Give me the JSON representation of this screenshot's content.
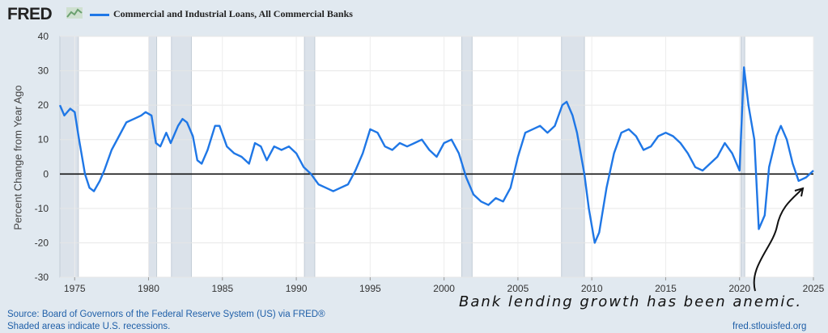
{
  "header": {
    "logo_text": "FRED",
    "logo_icon": "chart-line-icon",
    "series_title": "Commercial and Industrial Loans, All Commercial Banks"
  },
  "chart_data": {
    "type": "line",
    "title": "Commercial and Industrial Loans, All Commercial Banks",
    "ylabel": "Percent Change from Year Ago",
    "xlabel": "",
    "ylim": [
      -30,
      40
    ],
    "xlim": [
      1974,
      2025
    ],
    "y_ticks": [
      -30,
      -20,
      -10,
      0,
      10,
      20,
      30,
      40
    ],
    "x_ticks": [
      1975,
      1980,
      1985,
      1990,
      1995,
      2000,
      2005,
      2010,
      2015,
      2020,
      2025
    ],
    "grid": true,
    "zero_line": true,
    "series": [
      {
        "name": "Commercial and Industrial Loans, All Commercial Banks",
        "color": "#1f77e6",
        "points": [
          [
            1974.0,
            20
          ],
          [
            1974.3,
            17
          ],
          [
            1974.7,
            19
          ],
          [
            1975.0,
            18
          ],
          [
            1975.3,
            10
          ],
          [
            1975.7,
            0
          ],
          [
            1976.0,
            -4
          ],
          [
            1976.3,
            -5
          ],
          [
            1976.7,
            -2
          ],
          [
            1977.0,
            1
          ],
          [
            1977.5,
            7
          ],
          [
            1978.0,
            11
          ],
          [
            1978.5,
            15
          ],
          [
            1979.0,
            16
          ],
          [
            1979.5,
            17
          ],
          [
            1979.8,
            18
          ],
          [
            1980.2,
            17
          ],
          [
            1980.5,
            9
          ],
          [
            1980.8,
            8
          ],
          [
            1981.2,
            12
          ],
          [
            1981.5,
            9
          ],
          [
            1982.0,
            14
          ],
          [
            1982.3,
            16
          ],
          [
            1982.6,
            15
          ],
          [
            1983.0,
            11
          ],
          [
            1983.3,
            4
          ],
          [
            1983.6,
            3
          ],
          [
            1984.0,
            7
          ],
          [
            1984.5,
            14
          ],
          [
            1984.8,
            14
          ],
          [
            1985.3,
            8
          ],
          [
            1985.8,
            6
          ],
          [
            1986.3,
            5
          ],
          [
            1986.8,
            3
          ],
          [
            1987.2,
            9
          ],
          [
            1987.6,
            8
          ],
          [
            1988.0,
            4
          ],
          [
            1988.5,
            8
          ],
          [
            1989.0,
            7
          ],
          [
            1989.5,
            8
          ],
          [
            1990.0,
            6
          ],
          [
            1990.5,
            2
          ],
          [
            1991.0,
            0
          ],
          [
            1991.5,
            -3
          ],
          [
            1992.0,
            -4
          ],
          [
            1992.5,
            -5
          ],
          [
            1993.0,
            -4
          ],
          [
            1993.5,
            -3
          ],
          [
            1994.0,
            1
          ],
          [
            1994.5,
            6
          ],
          [
            1995.0,
            13
          ],
          [
            1995.5,
            12
          ],
          [
            1996.0,
            8
          ],
          [
            1996.5,
            7
          ],
          [
            1997.0,
            9
          ],
          [
            1997.5,
            8
          ],
          [
            1998.0,
            9
          ],
          [
            1998.5,
            10
          ],
          [
            1999.0,
            7
          ],
          [
            1999.5,
            5
          ],
          [
            2000.0,
            9
          ],
          [
            2000.5,
            10
          ],
          [
            2001.0,
            6
          ],
          [
            2001.5,
            -1
          ],
          [
            2002.0,
            -6
          ],
          [
            2002.5,
            -8
          ],
          [
            2003.0,
            -9
          ],
          [
            2003.5,
            -7
          ],
          [
            2004.0,
            -8
          ],
          [
            2004.5,
            -4
          ],
          [
            2005.0,
            5
          ],
          [
            2005.5,
            12
          ],
          [
            2006.0,
            13
          ],
          [
            2006.5,
            14
          ],
          [
            2007.0,
            12
          ],
          [
            2007.5,
            14
          ],
          [
            2008.0,
            20
          ],
          [
            2008.3,
            21
          ],
          [
            2008.7,
            17
          ],
          [
            2009.0,
            12
          ],
          [
            2009.5,
            0
          ],
          [
            2009.8,
            -10
          ],
          [
            2010.2,
            -20
          ],
          [
            2010.5,
            -17
          ],
          [
            2011.0,
            -4
          ],
          [
            2011.5,
            6
          ],
          [
            2012.0,
            12
          ],
          [
            2012.5,
            13
          ],
          [
            2013.0,
            11
          ],
          [
            2013.5,
            7
          ],
          [
            2014.0,
            8
          ],
          [
            2014.5,
            11
          ],
          [
            2015.0,
            12
          ],
          [
            2015.5,
            11
          ],
          [
            2016.0,
            9
          ],
          [
            2016.5,
            6
          ],
          [
            2017.0,
            2
          ],
          [
            2017.5,
            1
          ],
          [
            2018.0,
            3
          ],
          [
            2018.5,
            5
          ],
          [
            2019.0,
            9
          ],
          [
            2019.5,
            6
          ],
          [
            2020.0,
            1
          ],
          [
            2020.3,
            31
          ],
          [
            2020.6,
            20
          ],
          [
            2021.0,
            10
          ],
          [
            2021.3,
            -16
          ],
          [
            2021.7,
            -12
          ],
          [
            2022.0,
            2
          ],
          [
            2022.5,
            11
          ],
          [
            2022.8,
            14
          ],
          [
            2023.2,
            10
          ],
          [
            2023.6,
            3
          ],
          [
            2024.0,
            -2
          ],
          [
            2024.5,
            -1
          ],
          [
            2025.0,
            1
          ]
        ]
      }
    ],
    "recessions": [
      [
        1974.0,
        1975.25
      ],
      [
        1980.0,
        1980.55
      ],
      [
        1981.55,
        1982.9
      ],
      [
        1990.55,
        1991.25
      ],
      [
        2001.2,
        2001.9
      ],
      [
        2007.95,
        2009.5
      ],
      [
        2020.1,
        2020.35
      ]
    ]
  },
  "footer": {
    "source": "Source: Board of Governors of the Federal Reserve System (US) via FRED®",
    "shaded_note": "Shaded areas indicate U.S. recessions.",
    "site": "fred.stlouisfed.org"
  },
  "annotation": {
    "text": "Bank lending growth has been anemic."
  }
}
